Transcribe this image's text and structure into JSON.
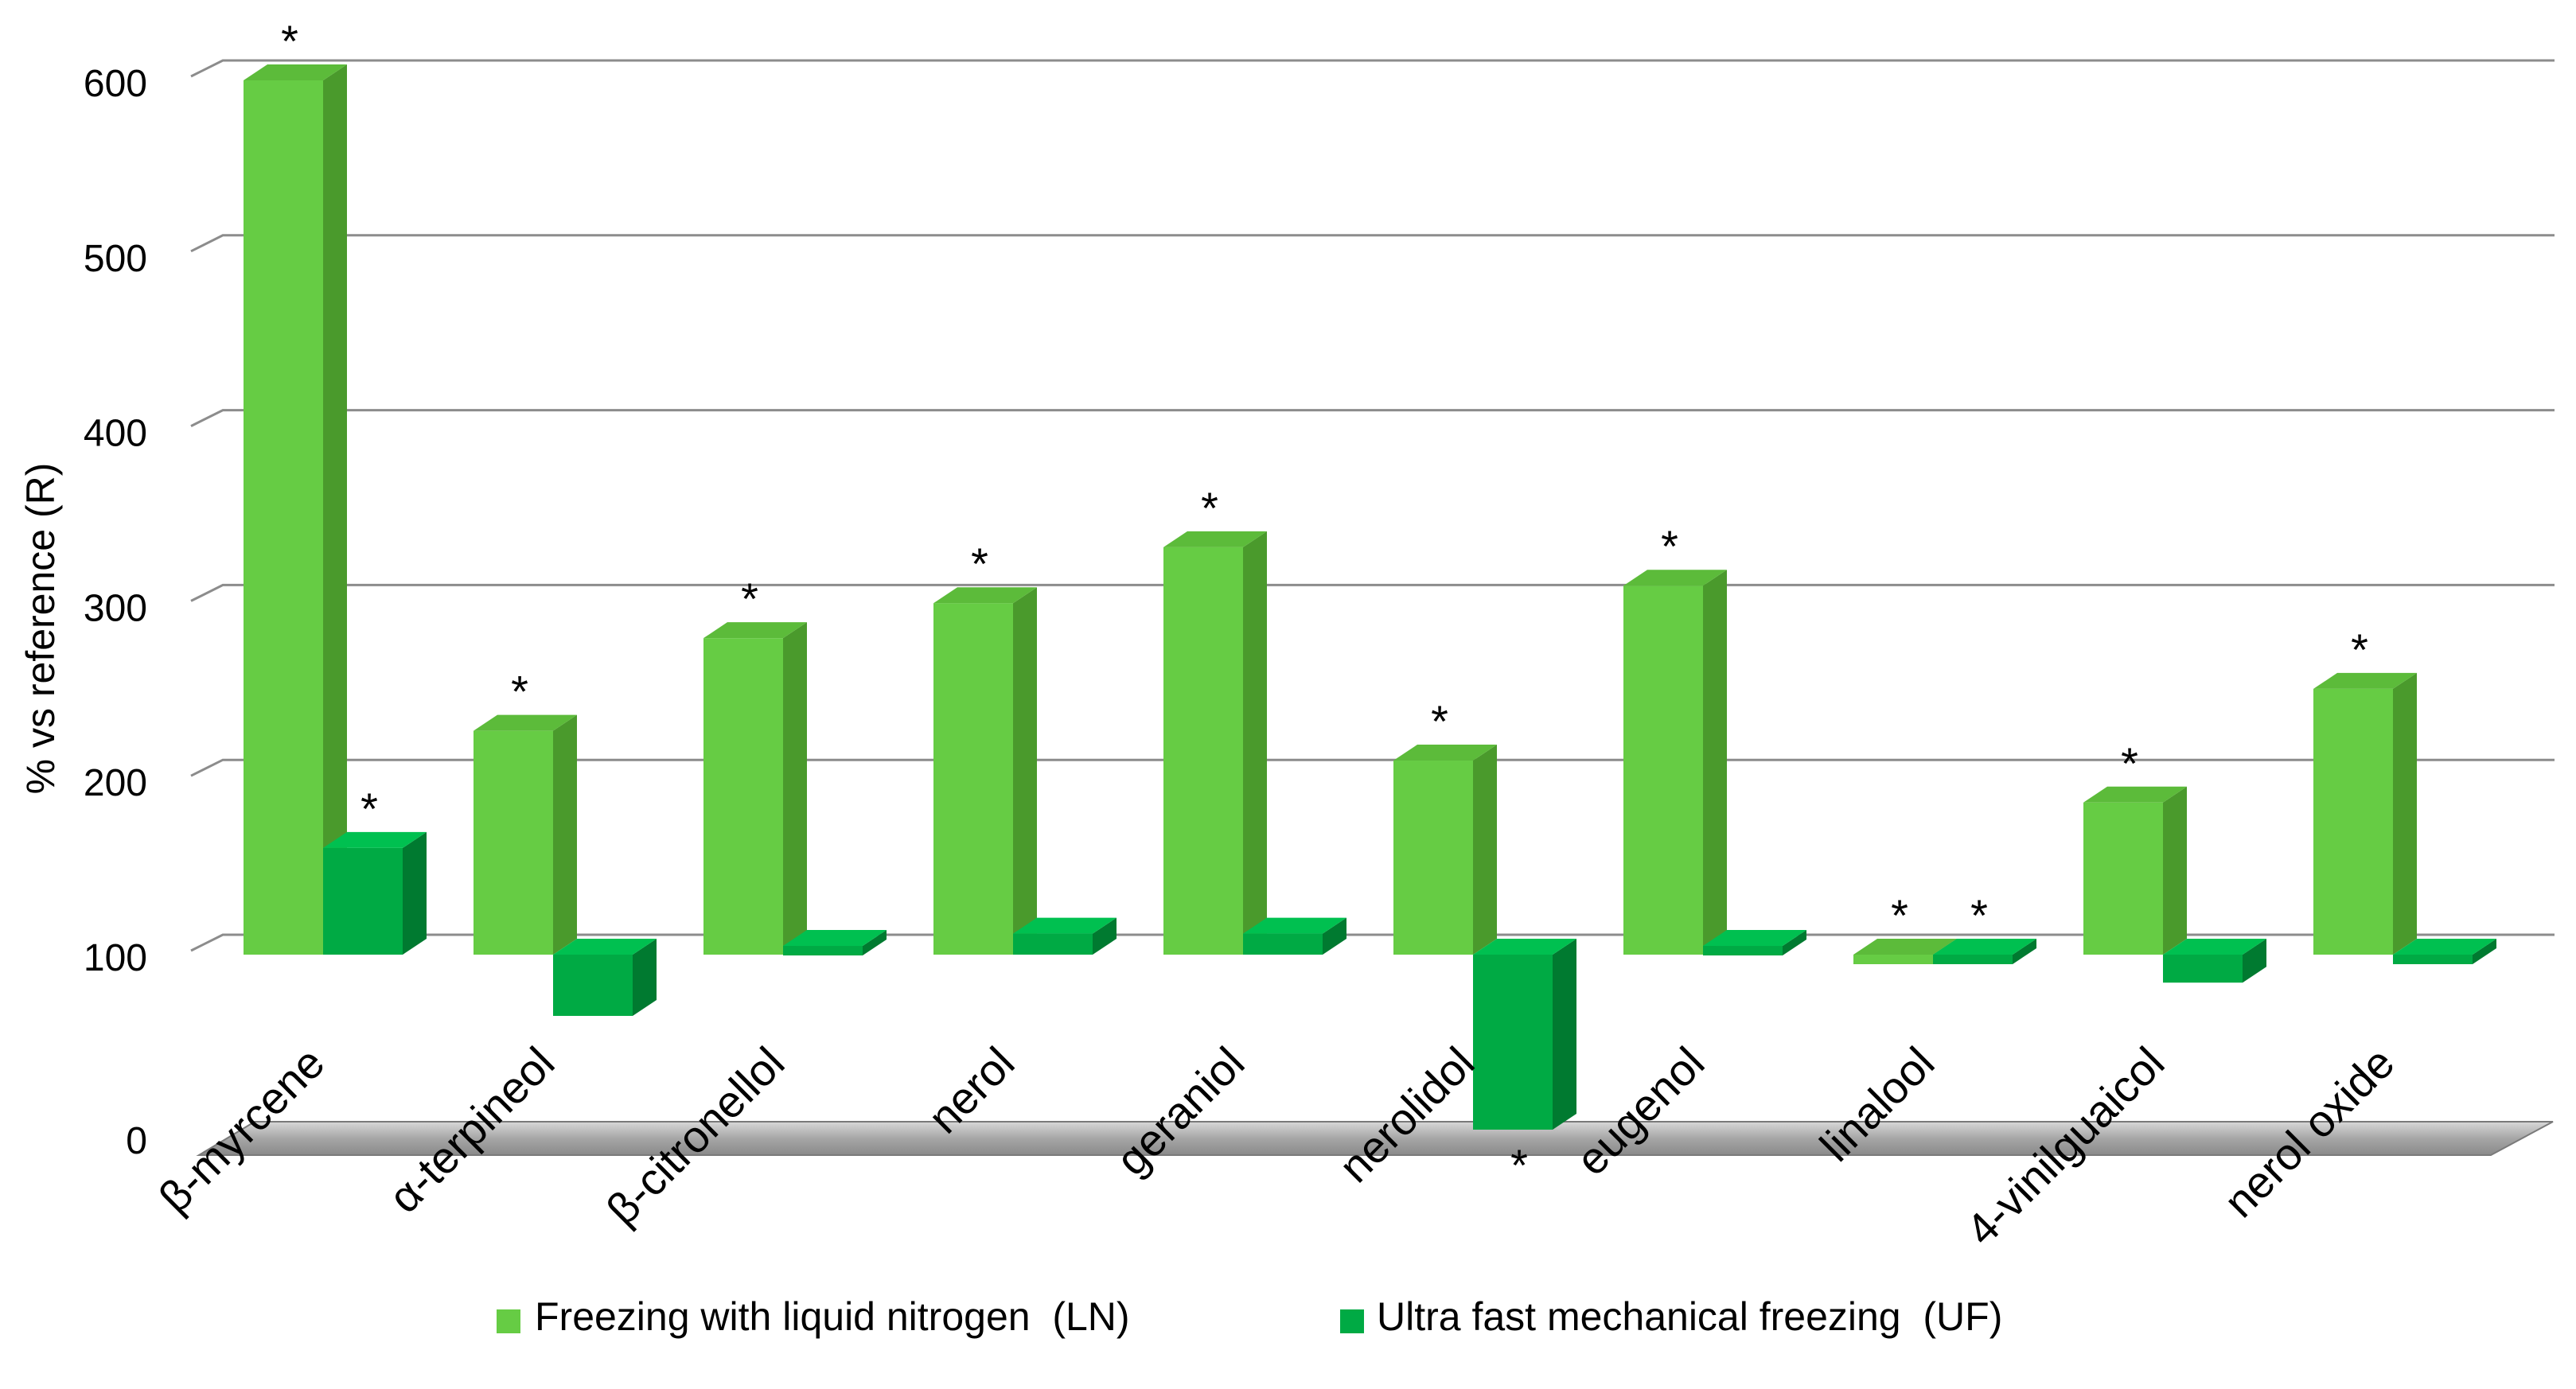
{
  "chart_data": {
    "type": "bar",
    "style": "3d-clustered",
    "title": "",
    "xlabel": "",
    "ylabel": "% vs reference (R)",
    "ylim": [
      0,
      600
    ],
    "yticks": [
      0,
      100,
      200,
      300,
      400,
      500,
      600
    ],
    "grid": true,
    "legend_position": "bottom",
    "categories": [
      "β-myrcene",
      "α-terpineol",
      "β-citronellol",
      "nerol",
      "geraniol",
      "nerolidol",
      "eugenol",
      "linalool",
      "4-vinilguaicol",
      "nerol oxide"
    ],
    "series": [
      {
        "name": "Freezing with liquid nitrogen  (LN)",
        "color": "#66cc44",
        "side_color": "#4a9a2c",
        "top_color": "#5cbb3a",
        "values": [
          600,
          228,
          281,
          301,
          333,
          211,
          311,
          100,
          187,
          252
        ],
        "significant": [
          true,
          true,
          true,
          true,
          true,
          true,
          true,
          true,
          true,
          true
        ]
      },
      {
        "name": "Ultra fast mechanical freezing  (UF)",
        "color": "#00aa44",
        "side_color": "#007a30",
        "top_color": "#00c050",
        "values": [
          161,
          65,
          105,
          112,
          112,
          0,
          105,
          100,
          84,
          97
        ],
        "significant": [
          true,
          false,
          false,
          false,
          false,
          true,
          false,
          true,
          false,
          false
        ]
      }
    ],
    "significance_marker": "*"
  }
}
